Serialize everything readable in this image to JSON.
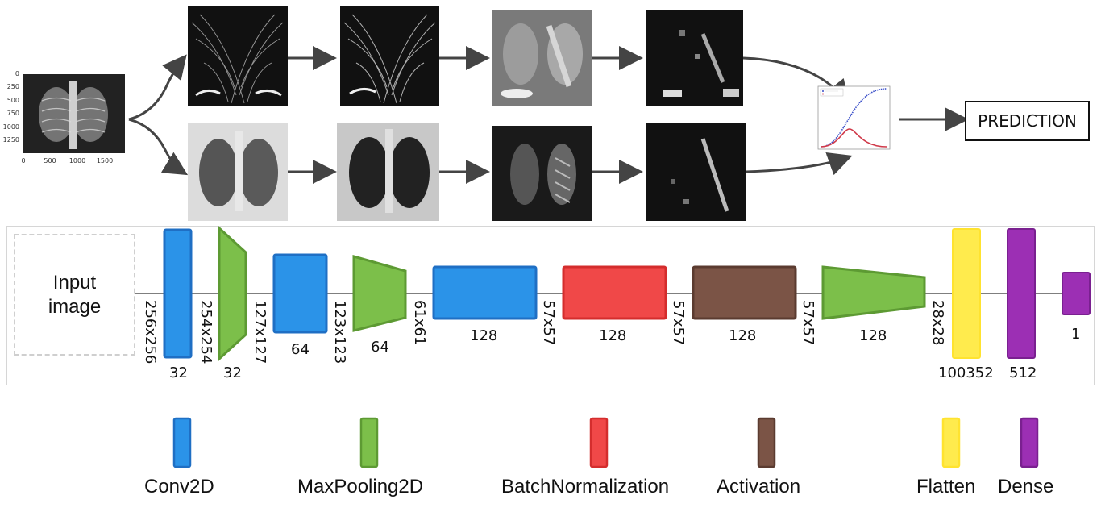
{
  "colors": {
    "conv2d": "#2b93e8",
    "conv2d_border": "#1f6fc4",
    "maxpool": "#7cbf4a",
    "maxpool_border": "#5d9a33",
    "batchnorm": "#f04848",
    "batchnorm_border": "#d42d2d",
    "activation": "#7b5446",
    "activation_border": "#5b3b30",
    "flatten": "#ffeb4d",
    "dense": "#9c2fb4",
    "dense_border": "#7a2090",
    "arrow": "#444444"
  },
  "source_image": {
    "y_ticks": [
      "0",
      "250",
      "500",
      "750",
      "1000",
      "1250"
    ],
    "x_ticks": [
      "0",
      "500",
      "1000",
      "1500"
    ]
  },
  "output": {
    "prediction_label": "PREDICTION"
  },
  "architecture": {
    "input_label_line1": "Input",
    "input_label_line2": "image",
    "layers": [
      {
        "type": "Conv2D",
        "filters": "32",
        "in_dim": "256x256"
      },
      {
        "type": "MaxPooling2D",
        "filters": "32",
        "in_dim": "254x254"
      },
      {
        "type": "Conv2D",
        "filters": "64",
        "in_dim": "127x127"
      },
      {
        "type": "MaxPooling2D",
        "filters": "64",
        "in_dim": "123x123"
      },
      {
        "type": "Conv2D",
        "filters": "128",
        "in_dim": "61x61"
      },
      {
        "type": "BatchNormalization",
        "filters": "128",
        "in_dim": "57x57"
      },
      {
        "type": "Activation",
        "filters": "128",
        "in_dim": "57x57"
      },
      {
        "type": "MaxPooling2D",
        "filters": "128",
        "in_dim": "57x57"
      },
      {
        "type": "Flatten",
        "filters": "100352",
        "in_dim": "28x28"
      },
      {
        "type": "Dense",
        "filters": "512",
        "in_dim": ""
      },
      {
        "type": "Dense",
        "filters": "1",
        "in_dim": ""
      }
    ]
  },
  "legend": [
    {
      "label": "Conv2D",
      "color": "#2b93e8"
    },
    {
      "label": "MaxPooling2D",
      "color": "#7cbf4a"
    },
    {
      "label": "BatchNormalization",
      "color": "#f04848"
    },
    {
      "label": "Activation",
      "color": "#7b5446"
    },
    {
      "label": "Flatten",
      "color": "#ffeb4d"
    },
    {
      "label": "Dense",
      "color": "#9c2fb4"
    }
  ]
}
